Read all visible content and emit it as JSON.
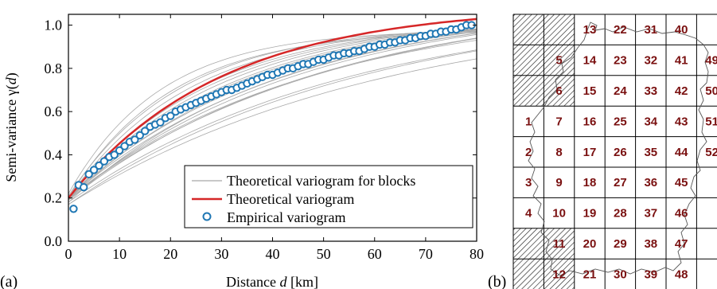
{
  "panel_a_label": "(a)",
  "panel_b_label": "(b)",
  "chart_data": [
    {
      "type": "line",
      "xlabel_prefix": "Distance ",
      "xlabel_var": "d",
      "xlabel_suffix": " [km]",
      "ylabel_prefix": "Semi-variance γ(",
      "ylabel_var": "d",
      "ylabel_suffix": ")",
      "xlim": [
        0,
        80
      ],
      "ylim": [
        0,
        1.05
      ],
      "xticks": [
        0,
        10,
        20,
        30,
        40,
        50,
        60,
        70,
        80
      ],
      "yticks": [
        0.0,
        0.2,
        0.4,
        0.6,
        0.8,
        1.0
      ],
      "xtick_labels": [
        "0",
        "10",
        "20",
        "30",
        "40",
        "50",
        "60",
        "70",
        "80"
      ],
      "ytick_labels": [
        "0.0",
        "0.2",
        "0.4",
        "0.6",
        "0.8",
        "1.0"
      ],
      "grid": false,
      "legend_position": "lower-right",
      "legend": [
        "Theoretical variogram for blocks",
        "Theoretical variogram",
        "Empirical variogram"
      ],
      "colors": {
        "blocks": "#a8a8a8",
        "theoretical": "#d62728",
        "empirical": "#1f77b4"
      },
      "theoretical_model": {
        "nugget": 0.2,
        "sill": 1.09,
        "range": 30
      },
      "block_models": [
        {
          "nugget": 0.22,
          "sill": 0.98,
          "range": 18
        },
        {
          "nugget": 0.2,
          "sill": 0.98,
          "range": 20
        },
        {
          "nugget": 0.21,
          "sill": 1.0,
          "range": 22
        },
        {
          "nugget": 0.2,
          "sill": 1.01,
          "range": 24
        },
        {
          "nugget": 0.19,
          "sill": 1.02,
          "range": 26
        },
        {
          "nugget": 0.2,
          "sill": 1.03,
          "range": 28
        },
        {
          "nugget": 0.2,
          "sill": 1.04,
          "range": 30
        },
        {
          "nugget": 0.19,
          "sill": 1.05,
          "range": 32
        },
        {
          "nugget": 0.2,
          "sill": 1.06,
          "range": 34
        },
        {
          "nugget": 0.2,
          "sill": 1.07,
          "range": 36
        },
        {
          "nugget": 0.19,
          "sill": 1.08,
          "range": 38
        },
        {
          "nugget": 0.2,
          "sill": 1.09,
          "range": 40
        },
        {
          "nugget": 0.18,
          "sill": 1.1,
          "range": 42
        },
        {
          "nugget": 0.2,
          "sill": 1.11,
          "range": 44
        },
        {
          "nugget": 0.19,
          "sill": 1.12,
          "range": 46
        },
        {
          "nugget": 0.2,
          "sill": 1.1,
          "range": 48
        },
        {
          "nugget": 0.19,
          "sill": 1.13,
          "range": 50
        },
        {
          "nugget": 0.2,
          "sill": 1.14,
          "range": 52
        },
        {
          "nugget": 0.18,
          "sill": 1.1,
          "range": 55
        },
        {
          "nugget": 0.17,
          "sill": 1.12,
          "range": 58
        },
        {
          "nugget": 0.17,
          "sill": 1.1,
          "range": 62
        }
      ],
      "empirical": {
        "x": [
          1,
          2,
          3,
          4,
          5,
          6,
          7,
          8,
          9,
          10,
          11,
          12,
          13,
          14,
          15,
          16,
          17,
          18,
          19,
          20,
          21,
          22,
          23,
          24,
          25,
          26,
          27,
          28,
          29,
          30,
          31,
          32,
          33,
          34,
          35,
          36,
          37,
          38,
          39,
          40,
          41,
          42,
          43,
          44,
          45,
          46,
          47,
          48,
          49,
          50,
          51,
          52,
          53,
          54,
          55,
          56,
          57,
          58,
          59,
          60,
          61,
          62,
          63,
          64,
          65,
          66,
          67,
          68,
          69,
          70,
          71,
          72,
          73,
          74,
          75,
          76,
          77,
          78,
          79
        ],
        "y": [
          0.15,
          0.26,
          0.25,
          0.31,
          0.33,
          0.35,
          0.37,
          0.39,
          0.4,
          0.42,
          0.44,
          0.46,
          0.47,
          0.49,
          0.51,
          0.53,
          0.54,
          0.55,
          0.57,
          0.58,
          0.6,
          0.61,
          0.62,
          0.63,
          0.64,
          0.65,
          0.66,
          0.67,
          0.68,
          0.69,
          0.7,
          0.7,
          0.71,
          0.72,
          0.73,
          0.74,
          0.75,
          0.76,
          0.77,
          0.77,
          0.78,
          0.79,
          0.8,
          0.8,
          0.81,
          0.82,
          0.82,
          0.83,
          0.84,
          0.84,
          0.85,
          0.86,
          0.86,
          0.87,
          0.87,
          0.88,
          0.88,
          0.89,
          0.9,
          0.9,
          0.91,
          0.91,
          0.92,
          0.92,
          0.93,
          0.93,
          0.94,
          0.94,
          0.95,
          0.95,
          0.96,
          0.96,
          0.97,
          0.97,
          0.98,
          0.98,
          0.99,
          1.0,
          1.0
        ]
      }
    },
    {
      "type": "table",
      "columns": 10,
      "rows": 9,
      "hatched_cells": [
        [
          0,
          0
        ],
        [
          1,
          0
        ],
        [
          0,
          1
        ],
        [
          1,
          1
        ],
        [
          0,
          2
        ],
        [
          1,
          2
        ],
        [
          0,
          7
        ],
        [
          1,
          7
        ],
        [
          0,
          8
        ],
        [
          1,
          8
        ],
        [
          9,
          0
        ],
        [
          9,
          1
        ],
        [
          9,
          2
        ],
        [
          9,
          6
        ],
        [
          9,
          7
        ],
        [
          9,
          8
        ]
      ],
      "cells": [
        {
          "label": "1",
          "col": 0,
          "row": 3
        },
        {
          "label": "2",
          "col": 0,
          "row": 4
        },
        {
          "label": "3",
          "col": 0,
          "row": 5
        },
        {
          "label": "4",
          "col": 0,
          "row": 6
        },
        {
          "label": "5",
          "col": 1,
          "row": 1
        },
        {
          "label": "6",
          "col": 1,
          "row": 2
        },
        {
          "label": "7",
          "col": 1,
          "row": 3
        },
        {
          "label": "8",
          "col": 1,
          "row": 4
        },
        {
          "label": "9",
          "col": 1,
          "row": 5
        },
        {
          "label": "10",
          "col": 1,
          "row": 6
        },
        {
          "label": "11",
          "col": 1,
          "row": 7
        },
        {
          "label": "12",
          "col": 1,
          "row": 8
        },
        {
          "label": "13",
          "col": 2,
          "row": 0
        },
        {
          "label": "14",
          "col": 2,
          "row": 1
        },
        {
          "label": "15",
          "col": 2,
          "row": 2
        },
        {
          "label": "16",
          "col": 2,
          "row": 3
        },
        {
          "label": "17",
          "col": 2,
          "row": 4
        },
        {
          "label": "18",
          "col": 2,
          "row": 5
        },
        {
          "label": "19",
          "col": 2,
          "row": 6
        },
        {
          "label": "20",
          "col": 2,
          "row": 7
        },
        {
          "label": "21",
          "col": 2,
          "row": 8
        },
        {
          "label": "22",
          "col": 3,
          "row": 0
        },
        {
          "label": "23",
          "col": 3,
          "row": 1
        },
        {
          "label": "24",
          "col": 3,
          "row": 2
        },
        {
          "label": "25",
          "col": 3,
          "row": 3
        },
        {
          "label": "26",
          "col": 3,
          "row": 4
        },
        {
          "label": "27",
          "col": 3,
          "row": 5
        },
        {
          "label": "28",
          "col": 3,
          "row": 6
        },
        {
          "label": "29",
          "col": 3,
          "row": 7
        },
        {
          "label": "30",
          "col": 3,
          "row": 8
        },
        {
          "label": "31",
          "col": 4,
          "row": 0
        },
        {
          "label": "32",
          "col": 4,
          "row": 1
        },
        {
          "label": "33",
          "col": 4,
          "row": 2
        },
        {
          "label": "34",
          "col": 4,
          "row": 3
        },
        {
          "label": "35",
          "col": 4,
          "row": 4
        },
        {
          "label": "36",
          "col": 4,
          "row": 5
        },
        {
          "label": "37",
          "col": 4,
          "row": 6
        },
        {
          "label": "38",
          "col": 4,
          "row": 7
        },
        {
          "label": "39",
          "col": 4,
          "row": 8
        },
        {
          "label": "40",
          "col": 5,
          "row": 0
        },
        {
          "label": "41",
          "col": 5,
          "row": 1
        },
        {
          "label": "42",
          "col": 5,
          "row": 2
        },
        {
          "label": "43",
          "col": 5,
          "row": 3
        },
        {
          "label": "44",
          "col": 5,
          "row": 4
        },
        {
          "label": "45",
          "col": 5,
          "row": 5
        },
        {
          "label": "46",
          "col": 5,
          "row": 6
        },
        {
          "label": "47",
          "col": 5,
          "row": 7
        },
        {
          "label": "48",
          "col": 5,
          "row": 8
        },
        {
          "label": "49",
          "col": 6,
          "row": 1
        },
        {
          "label": "50",
          "col": 6,
          "row": 2
        },
        {
          "label": "51",
          "col": 6,
          "row": 3
        },
        {
          "label": "52",
          "col": 6,
          "row": 4
        }
      ]
    }
  ]
}
